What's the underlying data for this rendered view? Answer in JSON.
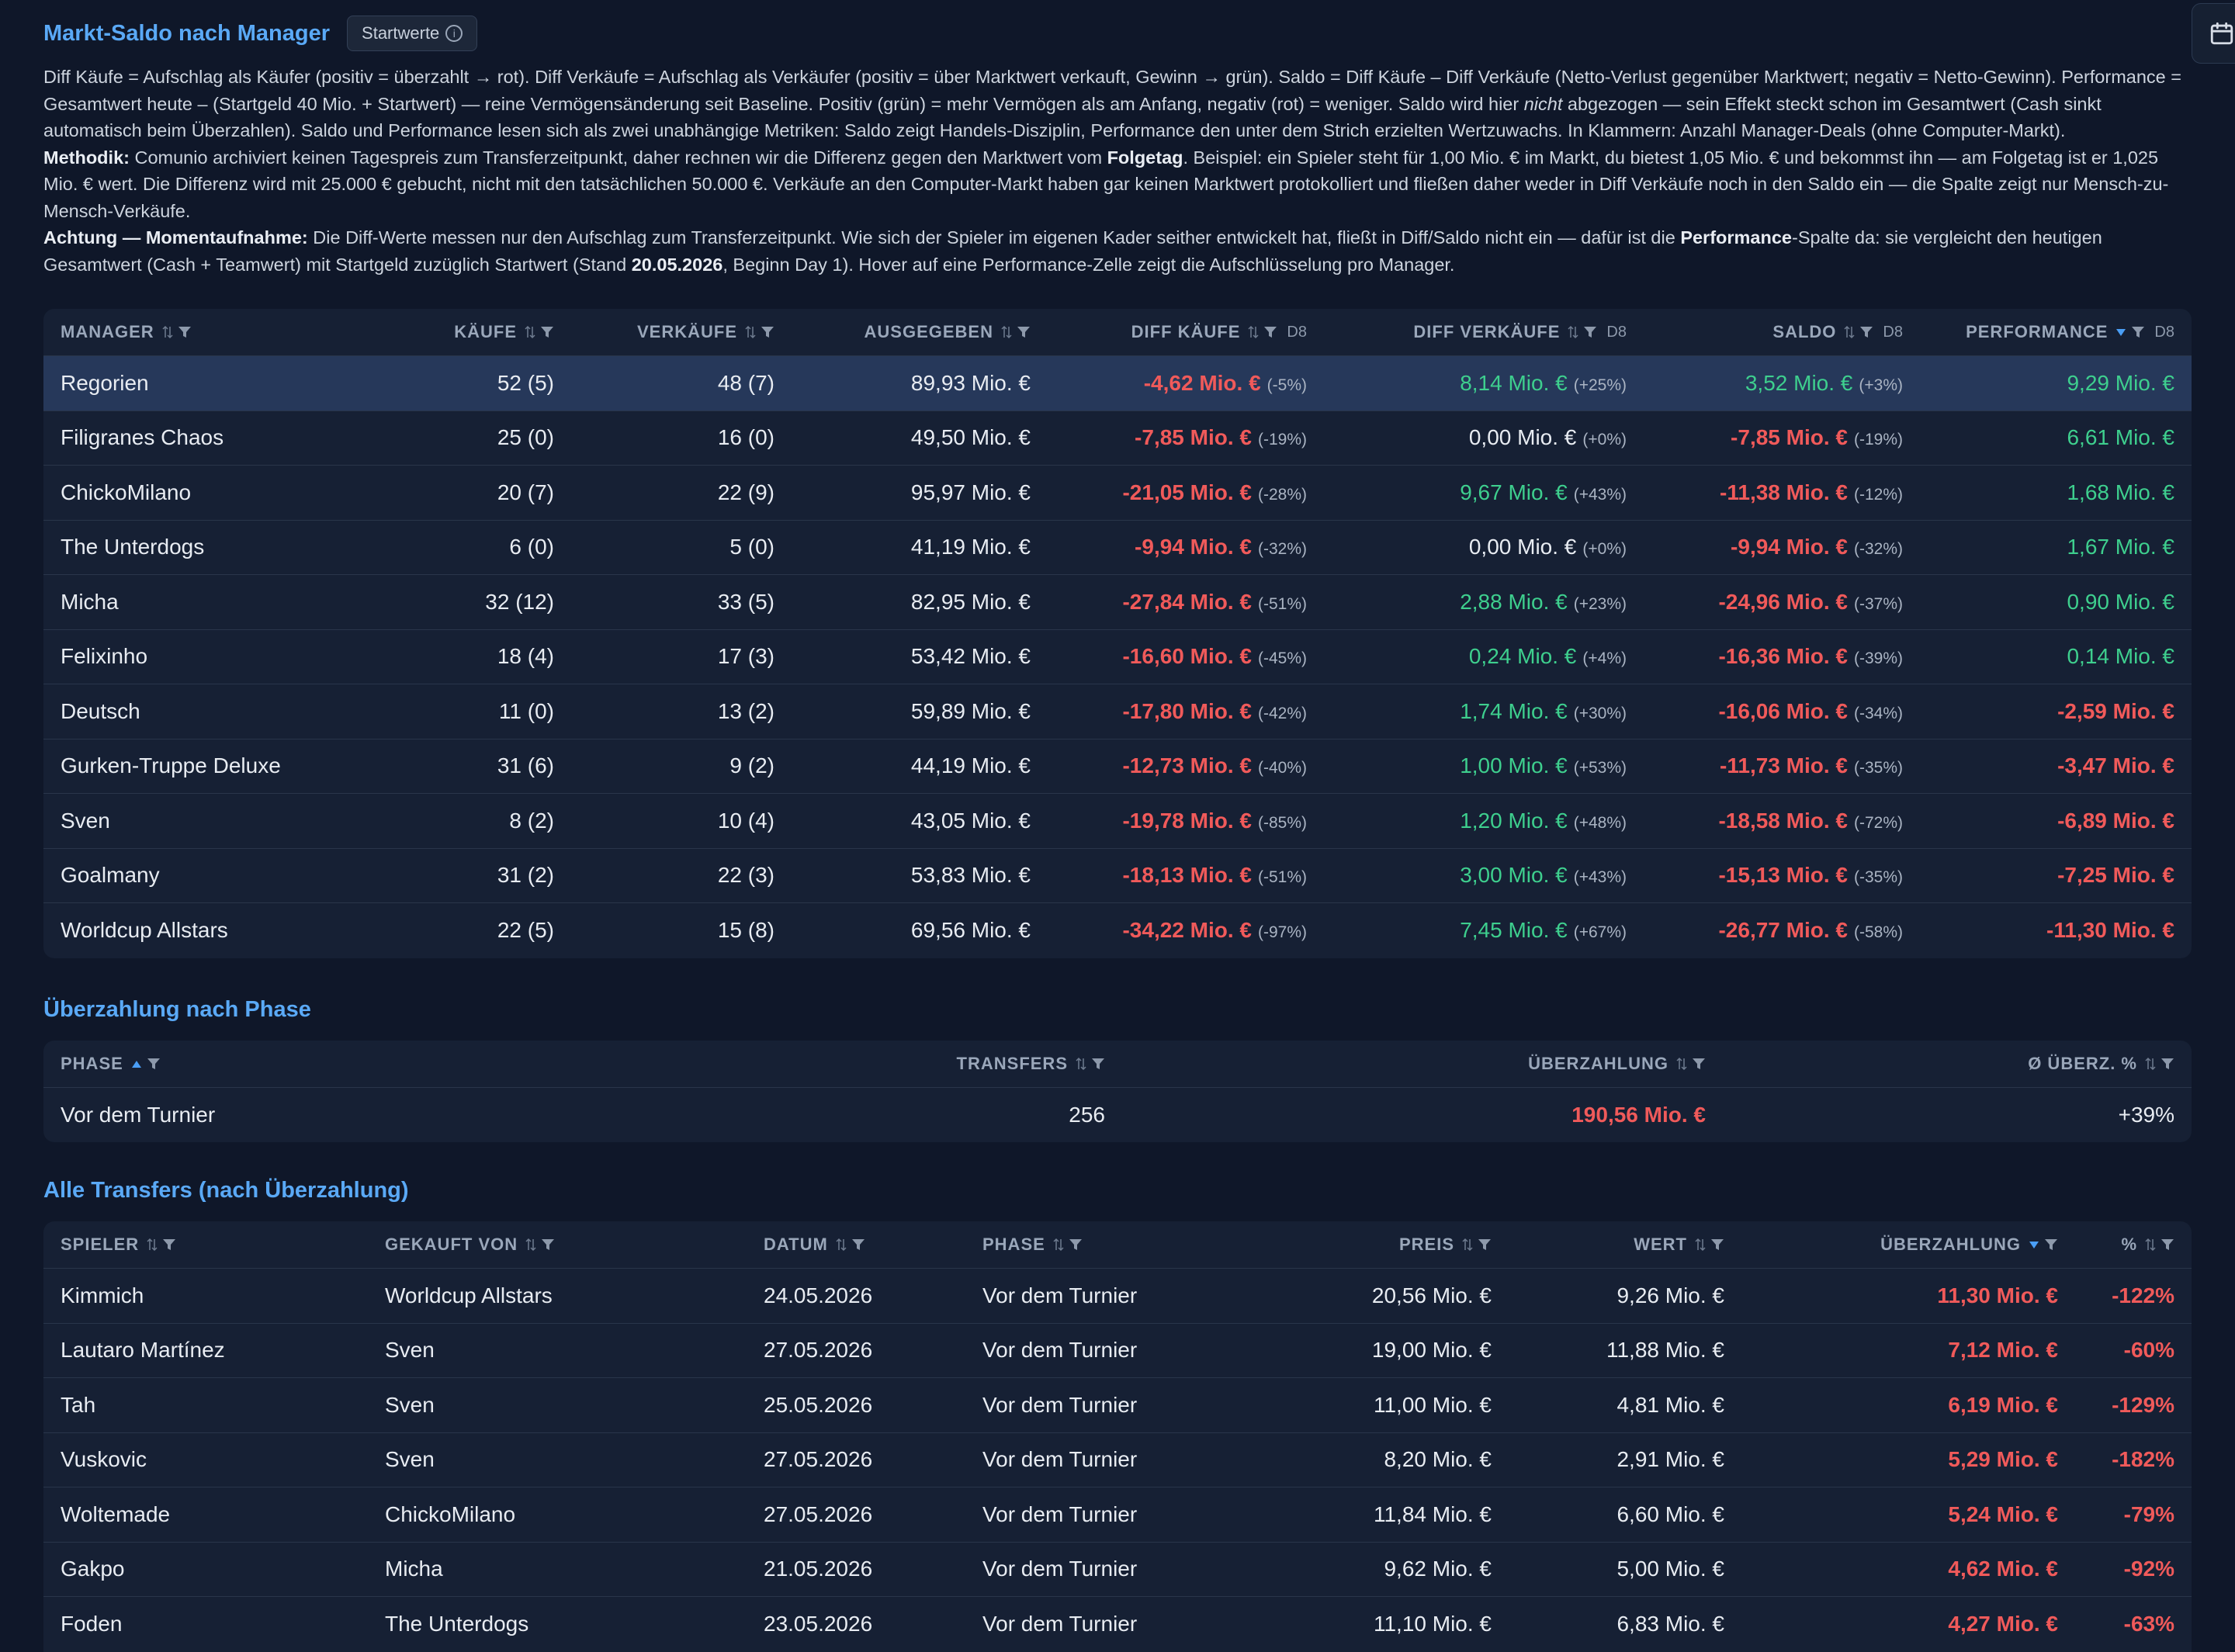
{
  "header": {
    "title": "Markt-Saldo nach Manager",
    "badge": "Startwerte",
    "badge_icon": "info-icon",
    "calendar_icon": "calendar-icon"
  },
  "description": {
    "p1": "Diff Käufe = Aufschlag als Käufer (positiv = überzahlt → rot). Diff Verkäufe = Aufschlag als Verkäufer (positiv = über Marktwert verkauft, Gewinn → grün). Saldo = Diff Käufe – Diff Verkäufe (Netto-Verlust gegenüber Marktwert; negativ = Netto-Gewinn). Performance = Gesamtwert heute – (Startgeld 40 Mio. + Startwert) — reine Vermögensänderung seit Baseline. Positiv (grün) = mehr Vermögen als am Anfang, negativ (rot) = weniger. Saldo wird hier ",
    "p1_em": "nicht",
    "p1_rest": " abgezogen — sein Effekt steckt schon im Gesamtwert (Cash sinkt automatisch beim Überzahlen). Saldo und Performance lesen sich als zwei unabhängige Metriken: Saldo zeigt Handels-Disziplin, Performance den unter dem Strich erzielten Wertzuwachs. In Klammern: Anzahl Manager-Deals (ohne Computer-Markt).",
    "p2_label": "Methodik:",
    "p2_a": " Comunio archiviert keinen Tagespreis zum Transferzeitpunkt, daher rechnen wir die Differenz gegen den Marktwert vom ",
    "p2_bold": "Folgetag",
    "p2_b": ". Beispiel: ein Spieler steht für 1,00 Mio. € im Markt, du bietest 1,05 Mio. € und bekommst ihn — am Folgetag ist er 1,025 Mio. € wert. Die Differenz wird mit 25.000 € gebucht, nicht mit den tatsächlichen 50.000 €. Verkäufe an den Computer-Markt haben gar keinen Marktwert protokolliert und fließen daher weder in Diff Verkäufe noch in den Saldo ein — die Spalte zeigt nur Mensch-zu-Mensch-Verkäufe.",
    "p3_label": "Achtung — Momentaufnahme:",
    "p3_a": " Die Diff-Werte messen nur den Aufschlag zum Transferzeitpunkt. Wie sich der Spieler im eigenen Kader seither entwickelt hat, fließt in Diff/Saldo nicht ein — dafür ist die ",
    "p3_bold": "Performance",
    "p3_b": "-Spalte da: sie vergleicht den heutigen Gesamtwert (Cash + Teamwert) mit Startgeld zuzüglich Startwert (Stand ",
    "p3_date": "20.05.2026",
    "p3_c": ", Beginn Day 1). Hover auf eine Performance-Zelle zeigt die Aufschlüsselung pro Manager."
  },
  "managers": {
    "columns": {
      "manager": "MANAGER",
      "kaeufe": "KÄUFE",
      "verkaeufe": "VERKÄUFE",
      "ausgegeben": "AUSGEGEBEN",
      "diff_kaeufe": "DIFF KÄUFE",
      "diff_verkaeufe": "DIFF VERKÄUFE",
      "saldo": "SALDO",
      "performance": "PERFORMANCE",
      "d8": "D8"
    },
    "rows": [
      {
        "name": "Regorien",
        "kaeufe": "52 (5)",
        "verkaeufe": "48 (7)",
        "ausgegeben": "89,93 Mio. €",
        "dk": "-4,62 Mio. €",
        "dk_p": "(-5%)",
        "dv": "8,14 Mio. €",
        "dv_p": "(+25%)",
        "dv_c": "pos",
        "s": "3,52 Mio. €",
        "s_p": "(+3%)",
        "s_c": "pos",
        "perf": "9,29 Mio. €",
        "perf_c": "pos"
      },
      {
        "name": "Filigranes Chaos",
        "kaeufe": "25 (0)",
        "verkaeufe": "16 (0)",
        "ausgegeben": "49,50 Mio. €",
        "dk": "-7,85 Mio. €",
        "dk_p": "(-19%)",
        "dv": "0,00 Mio. €",
        "dv_p": "(+0%)",
        "dv_c": "neu",
        "s": "-7,85 Mio. €",
        "s_p": "(-19%)",
        "s_c": "neg",
        "perf": "6,61 Mio. €",
        "perf_c": "pos"
      },
      {
        "name": "ChickoMilano",
        "kaeufe": "20 (7)",
        "verkaeufe": "22 (9)",
        "ausgegeben": "95,97 Mio. €",
        "dk": "-21,05 Mio. €",
        "dk_p": "(-28%)",
        "dv": "9,67 Mio. €",
        "dv_p": "(+43%)",
        "dv_c": "pos",
        "s": "-11,38 Mio. €",
        "s_p": "(-12%)",
        "s_c": "neg",
        "perf": "1,68 Mio. €",
        "perf_c": "pos"
      },
      {
        "name": "The Unterdogs",
        "kaeufe": "6 (0)",
        "verkaeufe": "5 (0)",
        "ausgegeben": "41,19 Mio. €",
        "dk": "-9,94 Mio. €",
        "dk_p": "(-32%)",
        "dv": "0,00 Mio. €",
        "dv_p": "(+0%)",
        "dv_c": "neu",
        "s": "-9,94 Mio. €",
        "s_p": "(-32%)",
        "s_c": "neg",
        "perf": "1,67 Mio. €",
        "perf_c": "pos"
      },
      {
        "name": "Micha",
        "kaeufe": "32 (12)",
        "verkaeufe": "33 (5)",
        "ausgegeben": "82,95 Mio. €",
        "dk": "-27,84 Mio. €",
        "dk_p": "(-51%)",
        "dv": "2,88 Mio. €",
        "dv_p": "(+23%)",
        "dv_c": "pos",
        "s": "-24,96 Mio. €",
        "s_p": "(-37%)",
        "s_c": "neg",
        "perf": "0,90 Mio. €",
        "perf_c": "pos"
      },
      {
        "name": "Felixinho",
        "kaeufe": "18 (4)",
        "verkaeufe": "17 (3)",
        "ausgegeben": "53,42 Mio. €",
        "dk": "-16,60 Mio. €",
        "dk_p": "(-45%)",
        "dv": "0,24 Mio. €",
        "dv_p": "(+4%)",
        "dv_c": "pos",
        "s": "-16,36 Mio. €",
        "s_p": "(-39%)",
        "s_c": "neg",
        "perf": "0,14 Mio. €",
        "perf_c": "pos"
      },
      {
        "name": "Deutsch",
        "kaeufe": "11 (0)",
        "verkaeufe": "13 (2)",
        "ausgegeben": "59,89 Mio. €",
        "dk": "-17,80 Mio. €",
        "dk_p": "(-42%)",
        "dv": "1,74 Mio. €",
        "dv_p": "(+30%)",
        "dv_c": "pos",
        "s": "-16,06 Mio. €",
        "s_p": "(-34%)",
        "s_c": "neg",
        "perf": "-2,59 Mio. €",
        "perf_c": "neg"
      },
      {
        "name": "Gurken-Truppe Deluxe",
        "kaeufe": "31 (6)",
        "verkaeufe": "9 (2)",
        "ausgegeben": "44,19 Mio. €",
        "dk": "-12,73 Mio. €",
        "dk_p": "(-40%)",
        "dv": "1,00 Mio. €",
        "dv_p": "(+53%)",
        "dv_c": "pos",
        "s": "-11,73 Mio. €",
        "s_p": "(-35%)",
        "s_c": "neg",
        "perf": "-3,47 Mio. €",
        "perf_c": "neg"
      },
      {
        "name": "Sven",
        "kaeufe": "8 (2)",
        "verkaeufe": "10 (4)",
        "ausgegeben": "43,05 Mio. €",
        "dk": "-19,78 Mio. €",
        "dk_p": "(-85%)",
        "dv": "1,20 Mio. €",
        "dv_p": "(+48%)",
        "dv_c": "pos",
        "s": "-18,58 Mio. €",
        "s_p": "(-72%)",
        "s_c": "neg",
        "perf": "-6,89 Mio. €",
        "perf_c": "neg"
      },
      {
        "name": "Goalmany",
        "kaeufe": "31 (2)",
        "verkaeufe": "22 (3)",
        "ausgegeben": "53,83 Mio. €",
        "dk": "-18,13 Mio. €",
        "dk_p": "(-51%)",
        "dv": "3,00 Mio. €",
        "dv_p": "(+43%)",
        "dv_c": "pos",
        "s": "-15,13 Mio. €",
        "s_p": "(-35%)",
        "s_c": "neg",
        "perf": "-7,25 Mio. €",
        "perf_c": "neg"
      },
      {
        "name": "Worldcup Allstars",
        "kaeufe": "22 (5)",
        "verkaeufe": "15 (8)",
        "ausgegeben": "69,56 Mio. €",
        "dk": "-34,22 Mio. €",
        "dk_p": "(-97%)",
        "dv": "7,45 Mio. €",
        "dv_p": "(+67%)",
        "dv_c": "pos",
        "s": "-26,77 Mio. €",
        "s_p": "(-58%)",
        "s_c": "neg",
        "perf": "-11,30 Mio. €",
        "perf_c": "neg"
      }
    ]
  },
  "phase_section": {
    "title": "Überzahlung nach Phase",
    "columns": {
      "phase": "PHASE",
      "transfers": "TRANSFERS",
      "ueberzahlung": "ÜBERZAHLUNG",
      "avg": "Ø ÜBERZ. %"
    },
    "rows": [
      {
        "phase": "Vor dem Turnier",
        "transfers": "256",
        "ueberzahlung": "190,56 Mio. €",
        "avg": "+39%"
      }
    ]
  },
  "transfers_section": {
    "title": "Alle Transfers (nach Überzahlung)",
    "columns": {
      "spieler": "SPIELER",
      "gekauft_von": "GEKAUFT VON",
      "datum": "DATUM",
      "phase": "PHASE",
      "preis": "PREIS",
      "wert": "WERT",
      "ueberzahlung": "ÜBERZAHLUNG",
      "pct": "%"
    },
    "rows": [
      {
        "spieler": "Kimmich",
        "von": "Worldcup Allstars",
        "datum": "24.05.2026",
        "phase": "Vor dem Turnier",
        "preis": "20,56 Mio. €",
        "wert": "9,26 Mio. €",
        "ueber": "11,30 Mio. €",
        "pct": "-122%"
      },
      {
        "spieler": "Lautaro Martínez",
        "von": "Sven",
        "datum": "27.05.2026",
        "phase": "Vor dem Turnier",
        "preis": "19,00 Mio. €",
        "wert": "11,88 Mio. €",
        "ueber": "7,12 Mio. €",
        "pct": "-60%"
      },
      {
        "spieler": "Tah",
        "von": "Sven",
        "datum": "25.05.2026",
        "phase": "Vor dem Turnier",
        "preis": "11,00 Mio. €",
        "wert": "4,81 Mio. €",
        "ueber": "6,19 Mio. €",
        "pct": "-129%"
      },
      {
        "spieler": "Vuskovic",
        "von": "Sven",
        "datum": "27.05.2026",
        "phase": "Vor dem Turnier",
        "preis": "8,20 Mio. €",
        "wert": "2,91 Mio. €",
        "ueber": "5,29 Mio. €",
        "pct": "-182%"
      },
      {
        "spieler": "Woltemade",
        "von": "ChickoMilano",
        "datum": "27.05.2026",
        "phase": "Vor dem Turnier",
        "preis": "11,84 Mio. €",
        "wert": "6,60 Mio. €",
        "ueber": "5,24 Mio. €",
        "pct": "-79%"
      },
      {
        "spieler": "Gakpo",
        "von": "Micha",
        "datum": "21.05.2026",
        "phase": "Vor dem Turnier",
        "preis": "9,62 Mio. €",
        "wert": "5,00 Mio. €",
        "ueber": "4,62 Mio. €",
        "pct": "-92%"
      },
      {
        "spieler": "Foden",
        "von": "The Unterdogs",
        "datum": "23.05.2026",
        "phase": "Vor dem Turnier",
        "preis": "11,10 Mio. €",
        "wert": "6,83 Mio. €",
        "ueber": "4,27 Mio. €",
        "pct": "-63%"
      }
    ]
  },
  "colors": {
    "accent": "#5aa9f6",
    "negative": "#f05a5a",
    "positive": "#3ecf8e",
    "background": "#0f1729",
    "panel": "#162034",
    "row_highlight": "#26385a"
  }
}
